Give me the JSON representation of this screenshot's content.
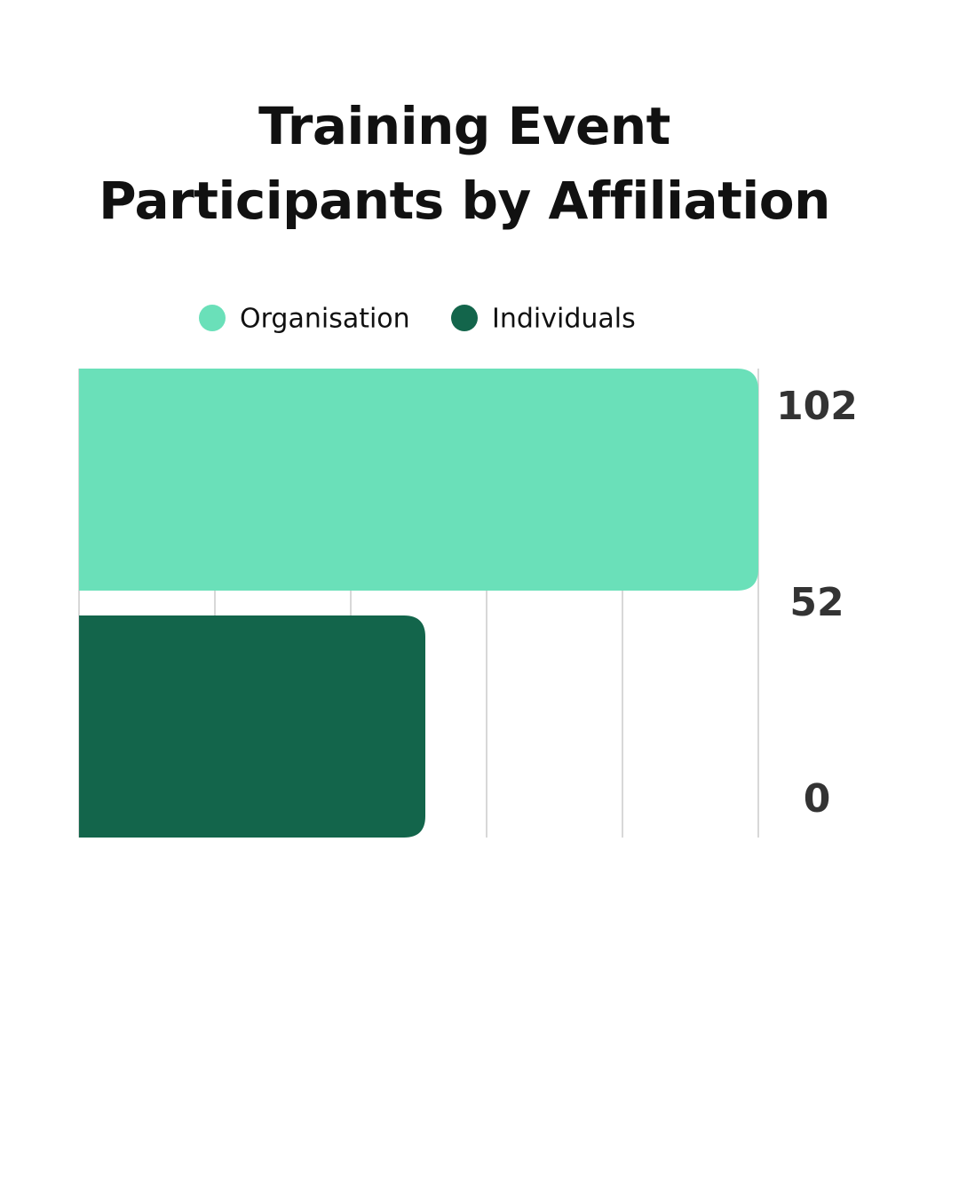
{
  "chart_data": {
    "type": "bar",
    "orientation": "horizontal",
    "title": "Training Event Participants by Affiliation",
    "series": [
      {
        "name": "Organisation",
        "color": "#6ae0b9",
        "values": [
          102
        ]
      },
      {
        "name": "Individuals",
        "color": "#13654b",
        "values": [
          52
        ]
      }
    ],
    "side_labels": [
      102,
      52,
      0
    ],
    "xlim": [
      0,
      102
    ],
    "xticks": [
      0,
      20.4,
      40.8,
      61.2,
      81.6,
      102
    ],
    "grid": true
  }
}
